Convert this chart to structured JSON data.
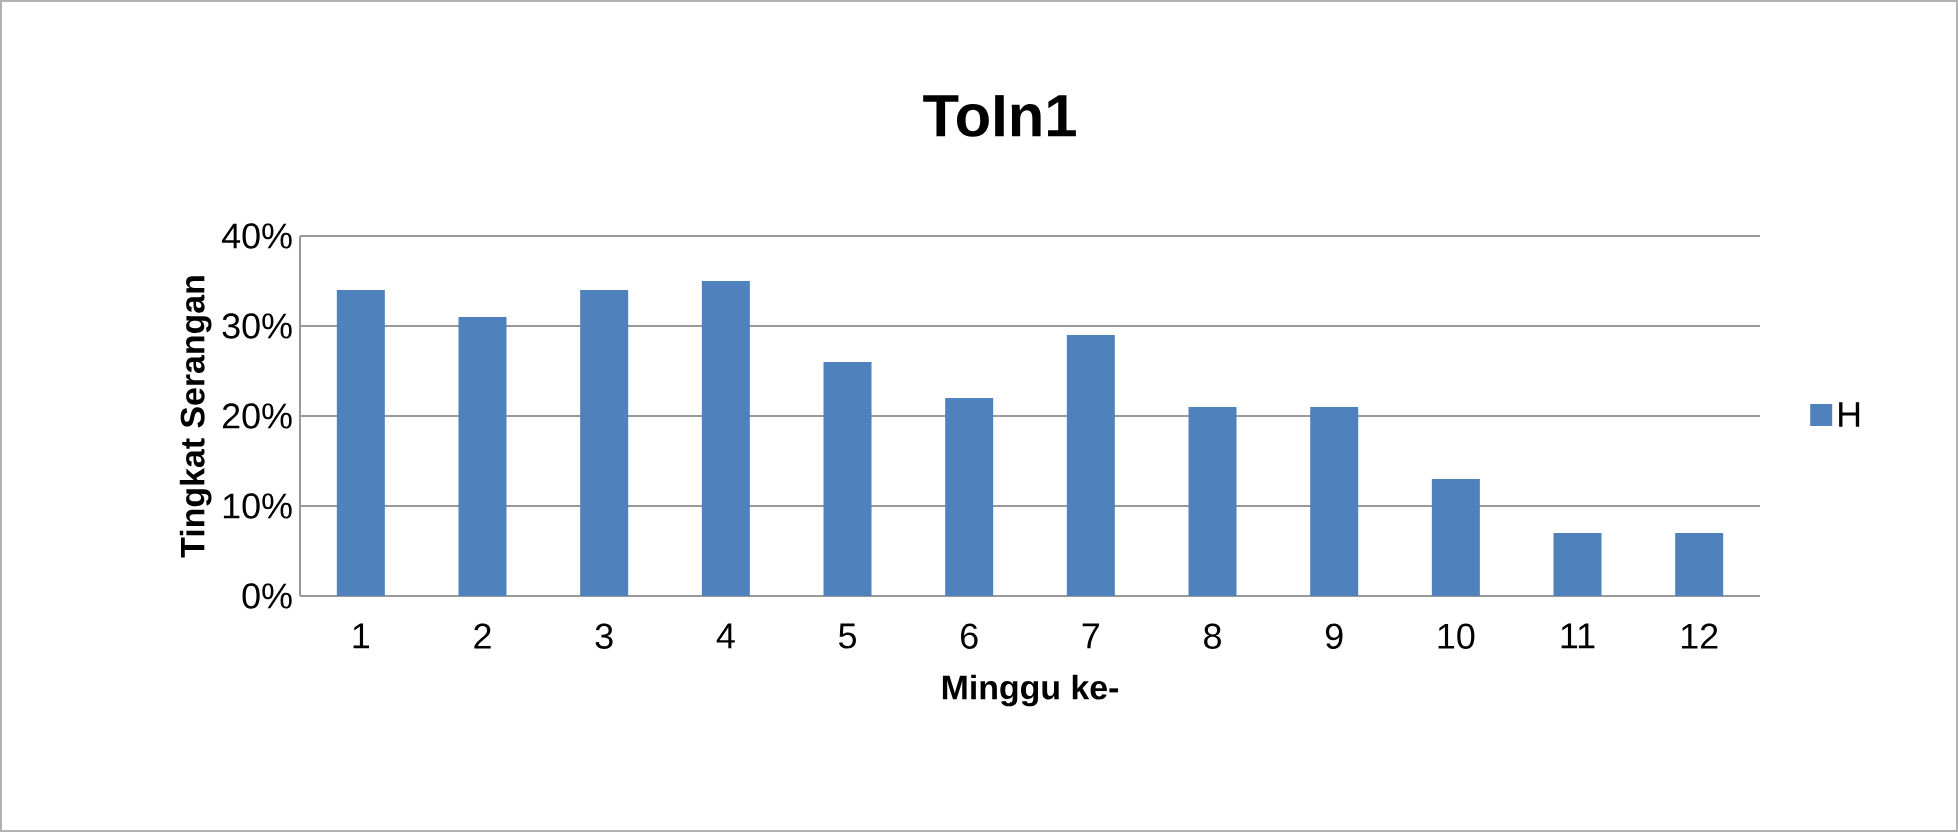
{
  "chart_data": {
    "type": "bar",
    "title": "ToIn1",
    "xlabel": "Minggu ke-",
    "ylabel": "Tingkat Serangan",
    "categories": [
      "1",
      "2",
      "3",
      "4",
      "5",
      "6",
      "7",
      "8",
      "9",
      "10",
      "11",
      "12"
    ],
    "series": [
      {
        "name": "H",
        "color": "#4f81bd",
        "values": [
          34,
          31,
          34,
          35,
          26,
          22,
          29,
          21,
          21,
          13,
          7,
          7
        ]
      }
    ],
    "ylim": [
      0,
      40
    ],
    "yticks": [
      {
        "value": 0,
        "label": "0%"
      },
      {
        "value": 10,
        "label": "10%"
      },
      {
        "value": 20,
        "label": "20%"
      },
      {
        "value": 30,
        "label": "30%"
      },
      {
        "value": 40,
        "label": "40%"
      }
    ],
    "grid": "y",
    "legend": "right"
  }
}
